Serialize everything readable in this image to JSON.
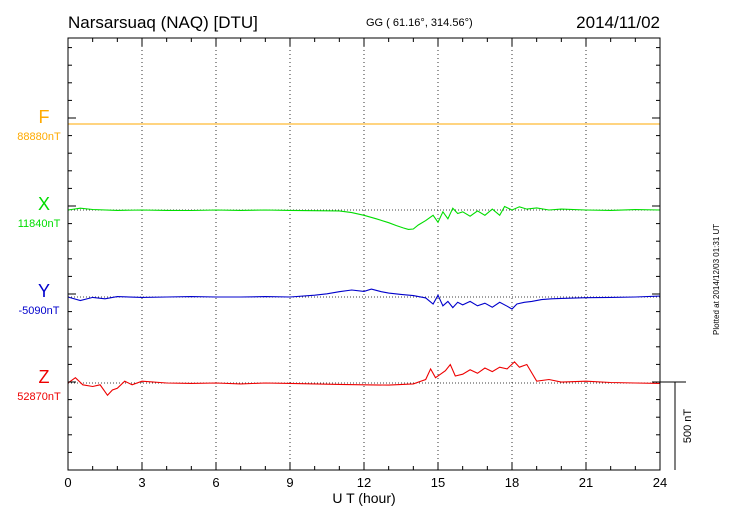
{
  "header": {
    "station": "Narsarsuaq (NAQ)  [DTU]",
    "coords": "GG ( 61.16°, 314.56°)",
    "date": "2014/11/02"
  },
  "footer": {
    "plotted": "Plotted at 2014/12/03 01:31  UT",
    "scale_label": "500 nT"
  },
  "chart_data": {
    "type": "line",
    "title": "Narsarsuaq (NAQ)  [DTU]",
    "xlabel": "U T (hour)",
    "ylabel": "",
    "xlim": [
      0,
      24
    ],
    "xticks": [
      "0",
      "3",
      "6",
      "9",
      "12",
      "15",
      "18",
      "21",
      "24"
    ],
    "scale_nT": 500,
    "scale_label": "500 nT",
    "series": [
      {
        "name": "F",
        "baseline_label": "88880nT",
        "color": "#ffaa00",
        "x": [
          0,
          24
        ],
        "values": [
          88880,
          88880
        ]
      },
      {
        "name": "X",
        "baseline_label": "11840nT",
        "color": "#00dd00",
        "x": [
          0,
          0.5,
          1,
          2,
          3,
          4,
          5,
          6,
          7,
          8,
          9,
          10,
          11,
          11.5,
          12,
          12.5,
          13,
          13.3,
          13.6,
          13.8,
          14,
          14.2,
          14.5,
          14.8,
          15,
          15.2,
          15.4,
          15.6,
          15.8,
          16,
          16.3,
          16.6,
          16.9,
          17.2,
          17.5,
          17.7,
          18,
          18.3,
          18.6,
          19,
          19.5,
          20,
          21,
          22,
          23,
          24
        ],
        "values": [
          11840,
          11850,
          11843,
          11838,
          11840,
          11838,
          11837,
          11840,
          11838,
          11840,
          11838,
          11836,
          11835,
          11825,
          11810,
          11790,
          11768,
          11752,
          11738,
          11730,
          11732,
          11755,
          11780,
          11810,
          11770,
          11830,
          11790,
          11850,
          11820,
          11830,
          11805,
          11835,
          11810,
          11845,
          11810,
          11860,
          11840,
          11858,
          11845,
          11852,
          11840,
          11845,
          11840,
          11838,
          11842,
          11840
        ]
      },
      {
        "name": "Y",
        "baseline_label": "-5090nT",
        "color": "#0000cc",
        "x": [
          0,
          0.5,
          1,
          1.5,
          2,
          3,
          4,
          5,
          6,
          7,
          8,
          9,
          10,
          10.5,
          11,
          11.5,
          12,
          12.3,
          12.7,
          13,
          13.5,
          14,
          14.5,
          14.8,
          15,
          15.2,
          15.4,
          15.6,
          15.8,
          16,
          16.3,
          16.6,
          16.9,
          17.2,
          17.5,
          17.8,
          18,
          18.2,
          18.5,
          18.8,
          19.2,
          19.6,
          20,
          21,
          22,
          23,
          24
        ],
        "values": [
          -5090,
          -5110,
          -5092,
          -5100,
          -5088,
          -5092,
          -5090,
          -5088,
          -5090,
          -5090,
          -5088,
          -5090,
          -5080,
          -5072,
          -5060,
          -5050,
          -5058,
          -5045,
          -5060,
          -5068,
          -5075,
          -5082,
          -5095,
          -5130,
          -5080,
          -5140,
          -5115,
          -5150,
          -5120,
          -5135,
          -5115,
          -5140,
          -5125,
          -5148,
          -5120,
          -5142,
          -5158,
          -5130,
          -5120,
          -5115,
          -5105,
          -5100,
          -5098,
          -5094,
          -5092,
          -5090,
          -5085
        ]
      },
      {
        "name": "Z",
        "baseline_label": "52870nT",
        "color": "#ee0000",
        "x": [
          0,
          0.3,
          0.6,
          1,
          1.3,
          1.6,
          1.8,
          2,
          2.3,
          2.6,
          3,
          4,
          5,
          6,
          7,
          8,
          9,
          10,
          11,
          12,
          13,
          14,
          14.5,
          14.7,
          14.9,
          15.1,
          15.3,
          15.5,
          15.7,
          16,
          16.3,
          16.6,
          16.9,
          17.2,
          17.5,
          17.8,
          18.1,
          18.3,
          18.6,
          19,
          19.5,
          20,
          21,
          22,
          23,
          24
        ],
        "values": [
          52870,
          52900,
          52860,
          52850,
          52860,
          52800,
          52830,
          52840,
          52880,
          52860,
          52880,
          52870,
          52868,
          52870,
          52865,
          52870,
          52868,
          52865,
          52862,
          52860,
          52858,
          52865,
          52890,
          52950,
          52900,
          52920,
          52940,
          52975,
          52910,
          52920,
          52945,
          52925,
          52955,
          52935,
          52960,
          52950,
          52990,
          52960,
          52975,
          52880,
          52890,
          52875,
          52880,
          52873,
          52870,
          52868
        ]
      }
    ]
  }
}
